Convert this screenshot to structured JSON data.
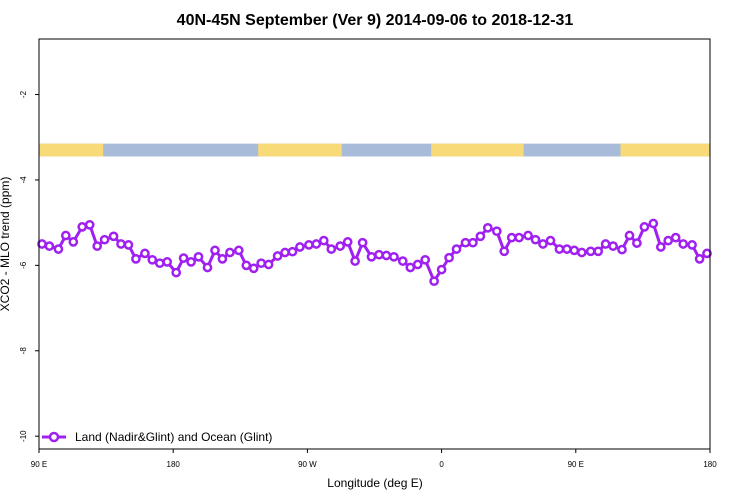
{
  "chart_data": {
    "type": "line",
    "title": "40N-45N September (Ver 9)   2014-09-06 to 2018-12-31",
    "xlabel": "Longitude (deg E)",
    "ylabel": "XCO2 - MLO trend (ppm)",
    "x_ticks": [
      {
        "value": 90,
        "label": "90 E"
      },
      {
        "value": 180,
        "label": "180"
      },
      {
        "value": 270,
        "label": "90 W"
      },
      {
        "value": 360,
        "label": "0"
      },
      {
        "value": 450,
        "label": "90 E"
      },
      {
        "value": 540,
        "label": "180"
      }
    ],
    "y_ticks": [
      {
        "value": -2,
        "label": "-2"
      },
      {
        "value": -4,
        "label": "-4"
      },
      {
        "value": -6,
        "label": "-6"
      },
      {
        "value": -8,
        "label": "-8"
      },
      {
        "value": -10,
        "label": "-10"
      }
    ],
    "xlim": [
      90,
      540
    ],
    "ylim": [
      -10.3,
      -0.7
    ],
    "grid": false,
    "legend": {
      "placement": "bottom-left"
    },
    "colors": {
      "series": "#a020f0",
      "land": "#f9da78",
      "ocean": "#a8bcd9"
    },
    "land_ocean_strip": {
      "y_range": [
        -3.45,
        -3.15
      ],
      "land_ranges": [
        [
          90,
          133
        ],
        [
          237,
          293
        ],
        [
          353,
          415
        ],
        [
          480,
          552
        ]
      ]
    },
    "series": [
      {
        "name": "Land (Nadir&Glint) and Ocean (Glint)",
        "x": [
          92,
          97,
          103,
          108,
          113,
          119,
          124,
          129,
          134,
          140,
          145,
          150,
          155,
          161,
          166,
          171,
          176,
          182,
          187,
          192,
          197,
          203,
          208,
          213,
          218,
          224,
          229,
          234,
          239,
          244,
          250,
          255,
          260,
          265,
          271,
          276,
          281,
          286,
          292,
          297,
          302,
          307,
          313,
          318,
          323,
          328,
          334,
          339,
          344,
          349,
          355,
          360,
          365,
          370,
          376,
          381,
          386,
          391,
          397,
          402,
          407,
          412,
          418,
          423,
          428,
          433,
          439,
          444,
          449,
          454,
          460,
          465,
          470,
          475,
          481,
          486,
          491,
          496,
          502,
          507,
          512,
          517,
          522,
          528,
          533,
          538
        ],
        "y": [
          -5.5,
          -5.55,
          -5.62,
          -5.3,
          -5.45,
          -5.1,
          -5.05,
          -5.55,
          -5.4,
          -5.32,
          -5.5,
          -5.52,
          -5.85,
          -5.72,
          -5.87,
          -5.95,
          -5.92,
          -6.17,
          -5.83,
          -5.92,
          -5.8,
          -6.05,
          -5.65,
          -5.85,
          -5.7,
          -5.65,
          -6.0,
          -6.07,
          -5.95,
          -5.98,
          -5.78,
          -5.7,
          -5.68,
          -5.57,
          -5.52,
          -5.5,
          -5.42,
          -5.62,
          -5.55,
          -5.45,
          -5.9,
          -5.47,
          -5.8,
          -5.75,
          -5.77,
          -5.8,
          -5.9,
          -6.05,
          -5.98,
          -5.87,
          -6.37,
          -6.1,
          -5.82,
          -5.62,
          -5.47,
          -5.47,
          -5.32,
          -5.12,
          -5.2,
          -5.67,
          -5.35,
          -5.35,
          -5.3,
          -5.4,
          -5.5,
          -5.42,
          -5.62,
          -5.62,
          -5.65,
          -5.7,
          -5.67,
          -5.67,
          -5.5,
          -5.55,
          -5.63,
          -5.3,
          -5.48,
          -5.1,
          -5.02,
          -5.57,
          -5.42,
          -5.35,
          -5.5,
          -5.52,
          -5.85,
          -5.72
        ]
      }
    ]
  }
}
